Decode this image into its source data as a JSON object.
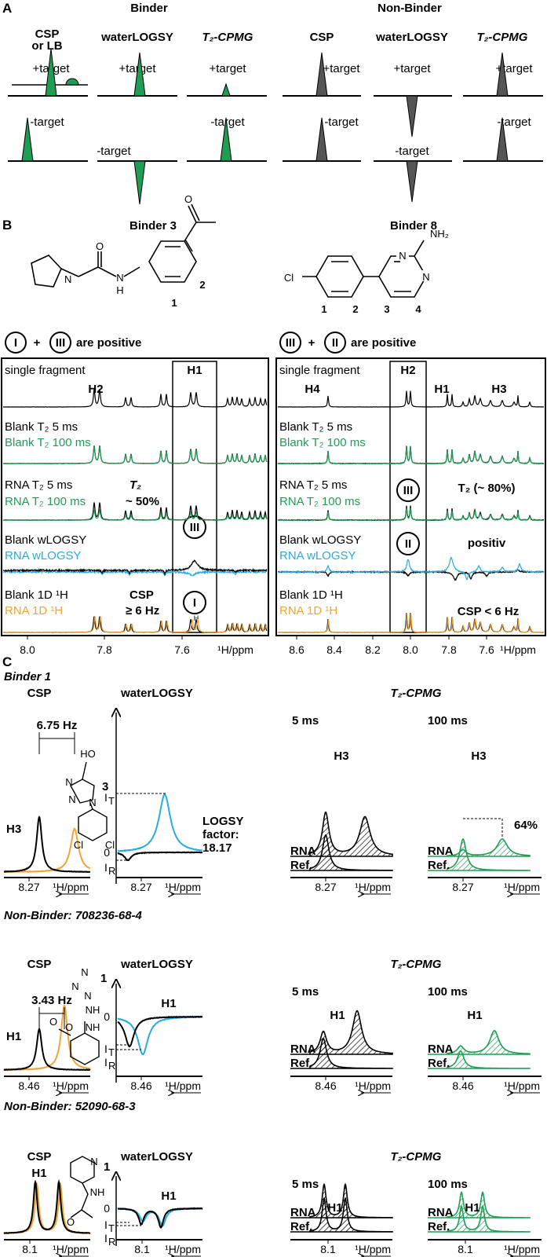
{
  "colors": {
    "green": "#1f9d55",
    "cyan": "#29abe2",
    "orange": "#f0a43a",
    "gray": "#555555",
    "black": "#000000"
  },
  "panel_a": {
    "label": "A",
    "binder_title": "Binder",
    "nonbinder_title": "Non-Binder",
    "columns": [
      "CSP",
      "or LB",
      "waterLOGSY",
      "T₂-CPMG",
      "CSP",
      "waterLOGSY",
      "T₂-CPMG"
    ],
    "plus": "+target",
    "minus": "-target"
  },
  "panel_b": {
    "label": "B",
    "left": {
      "title": "Binder 3",
      "atoms": [
        "O",
        "N",
        "O",
        "N",
        "H",
        "1",
        "2"
      ],
      "positive_a": "I",
      "plus": "+",
      "positive_b": "III",
      "positive_text": "are positive",
      "rows": [
        "single fragment",
        "Blank T₂ 5 ms",
        "Blank T₂ 100 ms",
        "RNA T₂ 5 ms",
        "RNA T₂ 100 ms",
        "Blank wLOGSY",
        "RNA wLOGSY",
        "Blank 1D ¹H",
        "RNA 1D ¹H"
      ],
      "peak_labels": [
        "H2",
        "H1",
        "H"
      ],
      "notes": [
        "T₂",
        "~ 50%",
        "CSP",
        "≥ 6 Hz"
      ],
      "circles": [
        "III",
        "I"
      ],
      "ticks": [
        "8.0",
        "7.8",
        "7.6"
      ],
      "axis": "¹H/ppm"
    },
    "right": {
      "title": "Binder 8",
      "atoms": [
        "Cl",
        "N",
        "N",
        "NH₂",
        "1",
        "2",
        "3",
        "4"
      ],
      "positive_a": "III",
      "plus": "+",
      "positive_b": "II",
      "positive_text": "are positive",
      "rows": [
        "single fragment",
        "Blank T₂ 5 ms",
        "Blank T₂ 100 ms",
        "RNA T₂ 5 ms",
        "RNA T₂ 100 ms",
        "Blank wLOGSY",
        "RNA wLOGSY",
        "Blank 1D ¹H",
        "RNA 1D ¹H"
      ],
      "peak_labels": [
        "H4",
        "H2",
        "H1",
        "H3"
      ],
      "notes": [
        "T₂ (~ 80%)",
        "positiv",
        "CSP < 6 Hz"
      ],
      "circles": [
        "III",
        "II"
      ],
      "ticks": [
        "8.6",
        "8.4",
        "8.2",
        "8.0",
        "7.8",
        "7.6"
      ],
      "axis": "¹H/ppm"
    }
  },
  "panel_c": {
    "label": "C",
    "headers": {
      "csp": "CSP",
      "wlogsy": "waterLOGSY",
      "t2": "T₂-CPMG",
      "t5": "5 ms",
      "t100": "100 ms",
      "rna": "RNA",
      "ref": "Ref.",
      "axis": "¹H/ppm",
      "zero": "0",
      "it": "I",
      "it_sub": "T",
      "ir": "I",
      "ir_sub": "R"
    },
    "rows": [
      {
        "title": "Binder 1",
        "proton": "H3",
        "shift": "6.75 Hz",
        "tick": "8.27",
        "factor_label": "LOGSY",
        "factor_label2": "factor:",
        "factor": "18.17",
        "t2_drop": "64%",
        "atoms": [
          "HO",
          "N",
          "N",
          "N",
          "3",
          "Cl",
          "Cl"
        ]
      },
      {
        "title": "Non-Binder: 708236-68-4",
        "proton": "H1",
        "shift": "3.43 Hz",
        "tick": "8.46",
        "atoms": [
          "N",
          "N",
          "N",
          "1",
          "NH",
          "O",
          "NH",
          "O"
        ]
      },
      {
        "title": "Non-Binder: 52090-68-3",
        "proton": "H1",
        "tick": "8.1",
        "atoms": [
          "N",
          "1",
          "NH",
          "O"
        ]
      }
    ]
  }
}
